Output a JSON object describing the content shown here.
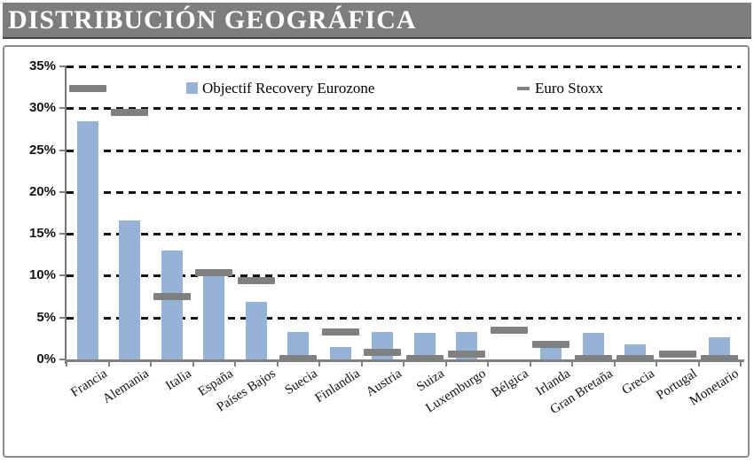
{
  "header": {
    "title": "DISTRIBUCIÓN GEOGRÁFICA"
  },
  "colors": {
    "title_bar_background": "#7D7D7D",
    "title_text": "#FFFFFF",
    "bar_blue": "#95B3D7",
    "marker_gray": "#808080",
    "frame_border": "#8C8C8C"
  },
  "chart_data": {
    "type": "bar",
    "title": "DISTRIBUCIÓN GEOGRÁFICA",
    "xlabel": "",
    "ylabel": "",
    "ylim": [
      0,
      35
    ],
    "y_tick_labels": [
      "0%",
      "5%",
      "10%",
      "15%",
      "20%",
      "25%",
      "30%",
      "35%"
    ],
    "y_tick_values": [
      0,
      5,
      10,
      15,
      20,
      25,
      30,
      35
    ],
    "grid": "horizontal dashed black",
    "legend_position": "top inside plot",
    "categories": [
      "Francia",
      "Alemania",
      "Italia",
      "España",
      "Países Bajos",
      "Suecia",
      "Finlandia",
      "Austria",
      "Suiza",
      "Luxemburgo",
      "Bélgica",
      "Irlanda",
      "Gran Bretaña",
      "Grecia",
      "Portugal",
      "Monetario"
    ],
    "series": [
      {
        "name": "Objectif Recovery Eurozone",
        "marker": "column",
        "color": "#95B3D7",
        "values": [
          28.4,
          16.6,
          13.0,
          10.0,
          6.9,
          3.3,
          1.5,
          3.3,
          3.2,
          3.3,
          0,
          1.8,
          3.2,
          1.8,
          0,
          2.6
        ]
      },
      {
        "name": "Euro Stoxx",
        "marker": "dash",
        "color": "#808080",
        "values": [
          32.4,
          29.5,
          7.5,
          10.4,
          9.4,
          0.1,
          3.3,
          0.8,
          0.1,
          0.6,
          3.5,
          1.8,
          0.1,
          0.1,
          0.6,
          0.1
        ]
      }
    ]
  }
}
